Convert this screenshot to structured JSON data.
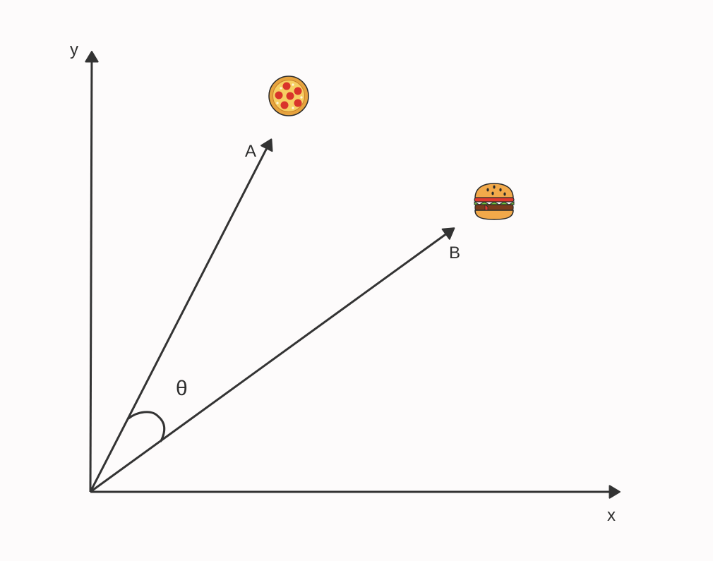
{
  "diagram": {
    "axes": {
      "x_label": "x",
      "y_label": "y"
    },
    "vectors": [
      {
        "label": "A",
        "icon": "pizza-icon"
      },
      {
        "label": "B",
        "icon": "burger-icon"
      }
    ],
    "angle_label": "θ",
    "colors": {
      "background": "#fdfbfb",
      "stroke": "#333333",
      "pizza_crust": "#e7a33e",
      "pizza_cheese": "#f6cf63",
      "pepperoni": "#d9342b",
      "bun": "#f2a94a",
      "patty": "#7a3b1c",
      "lettuce": "#6cbf3a",
      "sauce": "#e03a2f"
    }
  }
}
